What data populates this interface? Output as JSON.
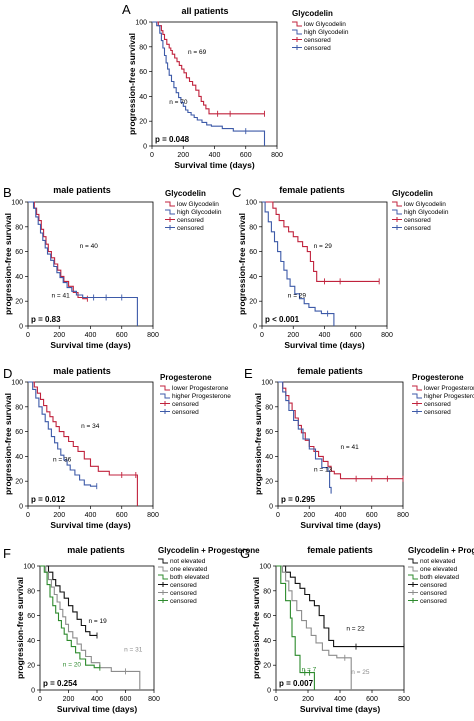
{
  "chart_data": [
    {
      "id": "A",
      "type": "line",
      "title": "all patients",
      "xlabel": "Survival time (days)",
      "ylabel": "progression-free survival",
      "xlim": [
        0,
        800
      ],
      "ylim": [
        0,
        100
      ],
      "xticks": [
        "0",
        "200",
        "400",
        "600",
        "800"
      ],
      "yticks": [
        "0",
        "20",
        "40",
        "60",
        "80",
        "100"
      ],
      "legend": {
        "title": "Glycodelin",
        "position": "right",
        "entries": [
          "low Glycodelin",
          "high Glycodelin",
          "censored",
          "censored"
        ]
      },
      "p_value": "p = 0.048",
      "series": [
        {
          "name": "low Glycodelin",
          "color": "#c0223c",
          "n_label": "n = 69",
          "n_at": [
            230,
            74
          ],
          "x": [
            0,
            40,
            60,
            70,
            80,
            95,
            110,
            120,
            130,
            145,
            160,
            175,
            190,
            205,
            220,
            240,
            260,
            280,
            300,
            315,
            330,
            345,
            365,
            420,
            500,
            720
          ],
          "y": [
            100,
            97,
            93,
            90,
            86,
            82,
            79,
            77,
            74,
            71,
            68,
            65,
            62,
            59,
            55,
            52,
            49,
            45,
            40,
            36,
            33,
            30,
            26,
            26,
            26,
            26
          ]
        },
        {
          "name": "high Glycodelin",
          "color": "#3d5aa8",
          "n_label": "n = 70",
          "n_at": [
            110,
            34
          ],
          "x": [
            0,
            30,
            50,
            60,
            70,
            80,
            90,
            100,
            110,
            125,
            140,
            155,
            170,
            185,
            200,
            215,
            230,
            250,
            270,
            290,
            320,
            350,
            380,
            450,
            520,
            600,
            720
          ],
          "y": [
            100,
            97,
            91,
            85,
            79,
            73,
            67,
            62,
            57,
            52,
            47,
            43,
            39,
            35,
            32,
            29,
            27,
            25,
            23,
            21,
            19,
            17,
            16,
            14,
            12,
            12,
            0
          ]
        }
      ]
    },
    {
      "id": "B",
      "type": "line",
      "title": "male patients",
      "xlabel": "Survival time (days)",
      "ylabel": "progression-free survival",
      "xlim": [
        0,
        800
      ],
      "ylim": [
        0,
        100
      ],
      "xticks": [
        "0",
        "200",
        "400",
        "600",
        "800"
      ],
      "yticks": [
        "0",
        "20",
        "40",
        "60",
        "80",
        "100"
      ],
      "legend": {
        "title": "Glycodelin",
        "position": "right",
        "entries": [
          "low Glycodelin",
          "high Glycodelin",
          "censored",
          "censored"
        ]
      },
      "p_value": "p = 0.83",
      "series": [
        {
          "name": "low Glycodelin",
          "color": "#c0223c",
          "n_label": "n = 40",
          "n_at": [
            330,
            63
          ],
          "x": [
            0,
            40,
            55,
            70,
            85,
            100,
            115,
            130,
            150,
            170,
            190,
            210,
            230,
            260,
            290,
            320,
            350,
            380
          ],
          "y": [
            100,
            95,
            90,
            85,
            78,
            72,
            66,
            60,
            55,
            50,
            45,
            40,
            36,
            32,
            27,
            23,
            22,
            22
          ]
        },
        {
          "name": "high Glycodelin",
          "color": "#3d5aa8",
          "n_label": "n = 41",
          "n_at": [
            150,
            23
          ],
          "x": [
            0,
            35,
            50,
            65,
            80,
            95,
            110,
            125,
            145,
            165,
            185,
            205,
            225,
            250,
            280,
            310,
            350,
            420,
            500,
            600,
            700
          ],
          "y": [
            100,
            95,
            88,
            82,
            75,
            69,
            63,
            58,
            53,
            48,
            43,
            39,
            35,
            31,
            28,
            25,
            23,
            23,
            23,
            23,
            0
          ]
        }
      ]
    },
    {
      "id": "C",
      "type": "line",
      "title": "female patients",
      "xlabel": "Survival time (days)",
      "ylabel": "progression-free survival",
      "xlim": [
        0,
        800
      ],
      "ylim": [
        0,
        100
      ],
      "xticks": [
        "0",
        "200",
        "400",
        "600",
        "800"
      ],
      "yticks": [
        "0",
        "20",
        "40",
        "60",
        "80",
        "100"
      ],
      "legend": {
        "title": "Glycodelin",
        "position": "right",
        "entries": [
          "low Glycodelin",
          "high Glycodelin",
          "censored",
          "censored"
        ]
      },
      "p_value": "p < 0.001",
      "series": [
        {
          "name": "low Glycodelin",
          "color": "#c0223c",
          "n_label": "n = 29",
          "n_at": [
            330,
            63
          ],
          "x": [
            0,
            70,
            90,
            110,
            140,
            170,
            200,
            230,
            260,
            290,
            310,
            330,
            350,
            400,
            500,
            750
          ],
          "y": [
            100,
            95,
            90,
            85,
            80,
            76,
            72,
            68,
            64,
            60,
            52,
            44,
            36,
            36,
            36,
            36
          ]
        },
        {
          "name": "high Glycodelin",
          "color": "#3d5aa8",
          "n_label": "n = 29",
          "n_at": [
            165,
            23
          ],
          "x": [
            0,
            20,
            40,
            60,
            80,
            100,
            120,
            140,
            160,
            180,
            210,
            240,
            270,
            300,
            340,
            380,
            420,
            460
          ],
          "y": [
            100,
            92,
            84,
            76,
            68,
            60,
            52,
            45,
            38,
            32,
            26,
            22,
            18,
            15,
            12,
            10,
            10,
            0
          ]
        }
      ]
    },
    {
      "id": "D",
      "type": "line",
      "title": "male patients",
      "xlabel": "Survival time (days)",
      "ylabel": "progression-free survival",
      "xlim": [
        0,
        800
      ],
      "ylim": [
        0,
        100
      ],
      "xticks": [
        "0",
        "200",
        "400",
        "600",
        "800"
      ],
      "yticks": [
        "0",
        "20",
        "40",
        "60",
        "80",
        "100"
      ],
      "legend": {
        "title": "Progesterone",
        "position": "right",
        "entries": [
          "lower Progesterone",
          "higher Progesterone",
          "censored",
          "censored"
        ]
      },
      "p_value": "p = 0.012",
      "series": [
        {
          "name": "lower Progesterone",
          "color": "#c0223c",
          "n_label": "n = 34",
          "n_at": [
            340,
            63
          ],
          "x": [
            0,
            40,
            60,
            80,
            100,
            120,
            140,
            160,
            180,
            200,
            230,
            260,
            290,
            320,
            360,
            400,
            450,
            520,
            600,
            690,
            700
          ],
          "y": [
            100,
            96,
            91,
            86,
            81,
            76,
            72,
            68,
            64,
            60,
            56,
            52,
            48,
            44,
            38,
            32,
            28,
            25,
            25,
            25,
            0
          ]
        },
        {
          "name": "higher Progesterone",
          "color": "#3d5aa8",
          "n_label": "n = 36",
          "n_at": [
            160,
            36
          ],
          "x": [
            0,
            30,
            50,
            70,
            90,
            110,
            130,
            150,
            170,
            190,
            210,
            230,
            250,
            270,
            300,
            330,
            360,
            400,
            440
          ],
          "y": [
            100,
            94,
            87,
            80,
            74,
            68,
            62,
            56,
            51,
            46,
            41,
            37,
            33,
            29,
            25,
            21,
            17,
            16,
            16
          ]
        }
      ]
    },
    {
      "id": "E",
      "type": "line",
      "title": "female patients",
      "xlabel": "Survival time (days)",
      "ylabel": "progression-free survival",
      "xlim": [
        0,
        800
      ],
      "ylim": [
        0,
        100
      ],
      "xticks": [
        "0",
        "200",
        "400",
        "600",
        "800"
      ],
      "yticks": [
        "0",
        "20",
        "40",
        "60",
        "80",
        "100"
      ],
      "legend": {
        "title": "Progesterone",
        "position": "right",
        "entries": [
          "lower Progesterone",
          "higher Progesterone",
          "censored",
          "censored"
        ]
      },
      "p_value": "p = 0.295",
      "series": [
        {
          "name": "lower Progesterone",
          "color": "#c0223c",
          "n_label": "n = 41",
          "n_at": [
            400,
            46
          ],
          "x": [
            0,
            30,
            50,
            70,
            90,
            110,
            130,
            150,
            175,
            200,
            230,
            260,
            290,
            320,
            340,
            360,
            400,
            500,
            600,
            700,
            800
          ],
          "y": [
            100,
            95,
            89,
            83,
            77,
            71,
            65,
            59,
            53,
            48,
            44,
            40,
            36,
            32,
            28,
            26,
            22,
            22,
            22,
            22,
            22
          ]
        },
        {
          "name": "higher Progesterone",
          "color": "#3d5aa8",
          "n_label": "n = 13",
          "n_at": [
            230,
            28
          ],
          "x": [
            0,
            30,
            50,
            70,
            100,
            130,
            160,
            200,
            240,
            280,
            320,
            330,
            340
          ],
          "y": [
            100,
            92,
            85,
            77,
            69,
            62,
            54,
            46,
            38,
            31,
            28,
            15,
            10
          ]
        }
      ]
    },
    {
      "id": "F",
      "type": "line",
      "title": "male patients",
      "xlabel": "Survival time (days)",
      "ylabel": "progression-free survival",
      "xlim": [
        0,
        800
      ],
      "ylim": [
        0,
        100
      ],
      "xticks": [
        "0",
        "200",
        "400",
        "600",
        "800"
      ],
      "yticks": [
        "0",
        "20",
        "40",
        "60",
        "80",
        "100"
      ],
      "legend": {
        "title": "Glycodelin + Progesterone",
        "position": "right",
        "entries": [
          "not elevated",
          "one elevated",
          "both elevated",
          "censored",
          "censored",
          "censored"
        ]
      },
      "p_value": "p = 0.254",
      "series": [
        {
          "name": "not elevated",
          "color": "#111111",
          "n_label": "n = 19",
          "n_at": [
            340,
            54
          ],
          "x": [
            0,
            60,
            90,
            110,
            140,
            170,
            200,
            230,
            260,
            290,
            320,
            350,
            400
          ],
          "y": [
            100,
            95,
            89,
            84,
            79,
            74,
            68,
            63,
            57,
            52,
            47,
            44,
            44
          ]
        },
        {
          "name": "one elevated",
          "color": "#8c8c8c",
          "n_label": "n = 31",
          "n_at": [
            590,
            31
          ],
          "x": [
            0,
            40,
            60,
            80,
            100,
            120,
            140,
            160,
            180,
            200,
            230,
            260,
            290,
            320,
            360,
            420,
            500,
            600,
            700
          ],
          "y": [
            100,
            95,
            89,
            83,
            77,
            71,
            65,
            59,
            53,
            47,
            42,
            37,
            32,
            27,
            22,
            18,
            15,
            15,
            0
          ]
        },
        {
          "name": "both elevated",
          "color": "#2d8a2d",
          "n_label": "n = 20",
          "n_at": [
            160,
            19
          ],
          "x": [
            0,
            30,
            50,
            70,
            90,
            110,
            130,
            150,
            170,
            190,
            220,
            250,
            280,
            320,
            380,
            420
          ],
          "y": [
            100,
            95,
            85,
            75,
            68,
            62,
            56,
            50,
            45,
            40,
            35,
            30,
            25,
            20,
            18,
            18
          ]
        }
      ]
    },
    {
      "id": "G",
      "type": "line",
      "title": "female patients",
      "xlabel": "Survival time (days)",
      "ylabel": "progression-free survival",
      "xlim": [
        0,
        800
      ],
      "ylim": [
        0,
        100
      ],
      "xticks": [
        "0",
        "200",
        "400",
        "600",
        "800"
      ],
      "yticks": [
        "0",
        "20",
        "40",
        "60",
        "80",
        "100"
      ],
      "legend": {
        "title": "Glycodelin + Progesterone",
        "position": "right",
        "entries": [
          "not elevated",
          "one elevated",
          "both elevated",
          "censored",
          "censored",
          "censored"
        ]
      },
      "p_value": "p = 0.007",
      "series": [
        {
          "name": "not elevated",
          "color": "#111111",
          "n_label": "n = 22",
          "n_at": [
            440,
            48
          ],
          "x": [
            0,
            60,
            90,
            120,
            150,
            180,
            210,
            240,
            270,
            300,
            330,
            360,
            500,
            800
          ],
          "y": [
            100,
            95,
            91,
            86,
            82,
            77,
            72,
            68,
            60,
            50,
            40,
            35,
            35,
            35
          ]
        },
        {
          "name": "one elevated",
          "color": "#8c8c8c",
          "n_label": "n = 25",
          "n_at": [
            470,
            13
          ],
          "x": [
            0,
            40,
            60,
            80,
            100,
            130,
            160,
            190,
            220,
            250,
            290,
            330,
            380,
            430,
            470
          ],
          "y": [
            100,
            95,
            88,
            80,
            72,
            64,
            56,
            50,
            44,
            38,
            32,
            28,
            26,
            26,
            0
          ]
        },
        {
          "name": "both elevated",
          "color": "#2d8a2d",
          "n_label": "n = 7",
          "n_at": [
            160,
            15
          ],
          "x": [
            0,
            30,
            60,
            90,
            100,
            120,
            150,
            180,
            210,
            240
          ],
          "y": [
            100,
            86,
            72,
            58,
            43,
            28,
            14,
            14,
            14,
            0
          ]
        }
      ]
    }
  ]
}
